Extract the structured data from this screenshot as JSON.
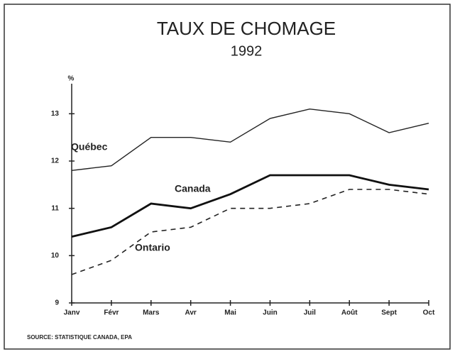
{
  "chart_data": {
    "type": "line",
    "title": "TAUX DE CHOMAGE",
    "subtitle": "1992",
    "y_label": "%",
    "source": "SOURCE: STATISTIQUE CANADA, EPA",
    "categories": [
      "Janv",
      "Févr",
      "Mars",
      "Avr",
      "Mai",
      "Juin",
      "Juil",
      "Août",
      "Sept",
      "Oct"
    ],
    "series": [
      {
        "name": "Québec",
        "color": "#222222",
        "style": "solid",
        "values": [
          11.8,
          11.9,
          12.5,
          12.5,
          12.4,
          12.9,
          13.1,
          13.0,
          12.6,
          12.8
        ]
      },
      {
        "name": "Canada",
        "color": "#111111",
        "style": "bold",
        "values": [
          10.4,
          10.6,
          11.1,
          11.0,
          11.3,
          11.7,
          11.7,
          11.7,
          11.5,
          11.4
        ]
      },
      {
        "name": "Ontario",
        "color": "#222222",
        "style": "dashed",
        "values": [
          9.6,
          9.9,
          10.5,
          10.6,
          11.0,
          11.0,
          11.1,
          11.4,
          11.4,
          11.3
        ]
      }
    ],
    "ylim": [
      9,
      13.8
    ],
    "yticks": [
      9,
      10,
      11,
      12,
      13
    ],
    "grid": false
  }
}
